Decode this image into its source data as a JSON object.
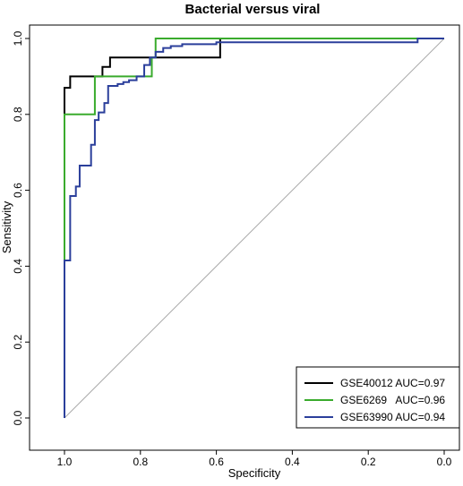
{
  "chart_data": {
    "type": "line",
    "title": "Bacterial versus viral",
    "xlabel": "Specificity",
    "ylabel": "Sensitivity",
    "xlim": [
      1.0,
      0.0
    ],
    "ylim": [
      0.0,
      1.0
    ],
    "x_reversed": true,
    "x_ticks": [
      "1.0",
      "0.8",
      "0.6",
      "0.4",
      "0.2",
      "0.0"
    ],
    "y_ticks": [
      "0.0",
      "0.2",
      "0.4",
      "0.6",
      "0.8",
      "1.0"
    ],
    "grid": false,
    "legend_position": "bottom-right",
    "reference_line": {
      "from": [
        1.0,
        0.0
      ],
      "to": [
        0.0,
        1.0
      ],
      "color": "#aaaaaa"
    },
    "series": [
      {
        "name": "GSE40012",
        "legend_label": "GSE40012 AUC=0.97",
        "color": "#000000",
        "points": [
          [
            1.0,
            0.0
          ],
          [
            1.0,
            0.8
          ],
          [
            1.0,
            0.87
          ],
          [
            0.985,
            0.87
          ],
          [
            0.985,
            0.9
          ],
          [
            0.9,
            0.9
          ],
          [
            0.9,
            0.925
          ],
          [
            0.88,
            0.925
          ],
          [
            0.88,
            0.95
          ],
          [
            0.76,
            0.95
          ],
          [
            0.76,
            0.95
          ],
          [
            0.59,
            0.95
          ],
          [
            0.59,
            1.0
          ],
          [
            0.0,
            1.0
          ]
        ]
      },
      {
        "name": "GSE6269",
        "legend_label": "GSE6269   AUC=0.96",
        "color": "#3aab2d",
        "points": [
          [
            1.0,
            0.0
          ],
          [
            1.0,
            0.8
          ],
          [
            0.92,
            0.8
          ],
          [
            0.92,
            0.9
          ],
          [
            0.77,
            0.9
          ],
          [
            0.77,
            0.95
          ],
          [
            0.76,
            0.95
          ],
          [
            0.76,
            1.0
          ],
          [
            0.0,
            1.0
          ]
        ]
      },
      {
        "name": "GSE63990",
        "legend_label": "GSE63990 AUC=0.94",
        "color": "#2b3f9b",
        "points": [
          [
            1.0,
            0.0
          ],
          [
            1.0,
            0.415
          ],
          [
            0.985,
            0.415
          ],
          [
            0.985,
            0.585
          ],
          [
            0.97,
            0.585
          ],
          [
            0.97,
            0.61
          ],
          [
            0.96,
            0.61
          ],
          [
            0.96,
            0.665
          ],
          [
            0.93,
            0.665
          ],
          [
            0.93,
            0.72
          ],
          [
            0.92,
            0.72
          ],
          [
            0.92,
            0.785
          ],
          [
            0.91,
            0.785
          ],
          [
            0.91,
            0.805
          ],
          [
            0.895,
            0.805
          ],
          [
            0.895,
            0.83
          ],
          [
            0.885,
            0.83
          ],
          [
            0.885,
            0.875
          ],
          [
            0.86,
            0.875
          ],
          [
            0.86,
            0.88
          ],
          [
            0.845,
            0.88
          ],
          [
            0.845,
            0.885
          ],
          [
            0.83,
            0.885
          ],
          [
            0.83,
            0.89
          ],
          [
            0.81,
            0.89
          ],
          [
            0.81,
            0.9
          ],
          [
            0.79,
            0.9
          ],
          [
            0.79,
            0.93
          ],
          [
            0.775,
            0.93
          ],
          [
            0.775,
            0.95
          ],
          [
            0.76,
            0.95
          ],
          [
            0.76,
            0.965
          ],
          [
            0.74,
            0.965
          ],
          [
            0.74,
            0.975
          ],
          [
            0.72,
            0.975
          ],
          [
            0.72,
            0.98
          ],
          [
            0.69,
            0.98
          ],
          [
            0.69,
            0.985
          ],
          [
            0.6,
            0.985
          ],
          [
            0.6,
            0.99
          ],
          [
            0.07,
            0.99
          ],
          [
            0.07,
            1.0
          ],
          [
            0.0,
            1.0
          ]
        ]
      }
    ]
  }
}
